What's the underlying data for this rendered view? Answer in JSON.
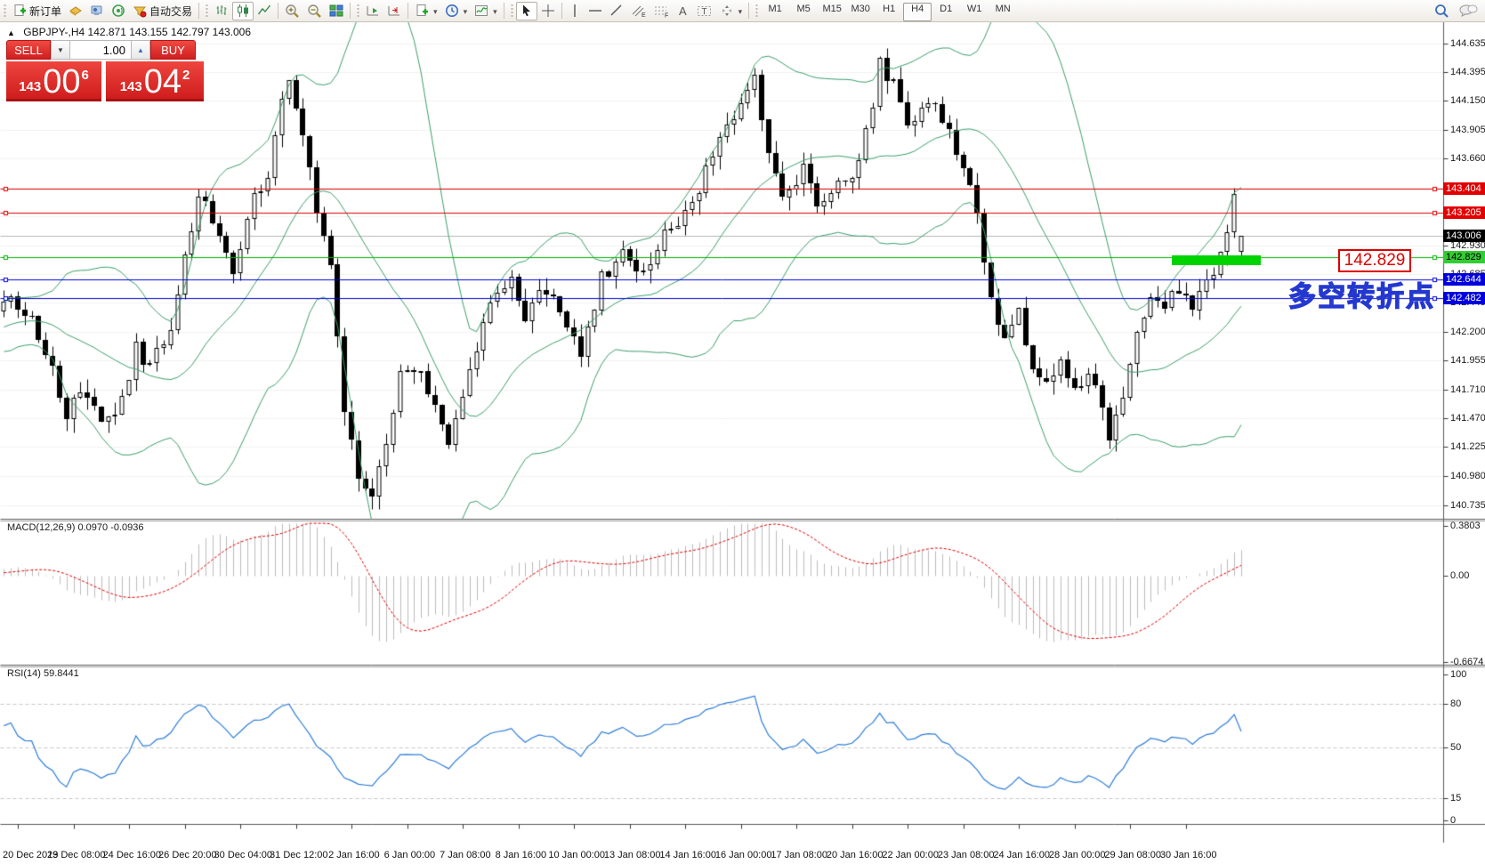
{
  "toolbar": {
    "new_order_label": "新订单",
    "autotrading_label": "自动交易",
    "channel_letter": "E",
    "fibo_letter": "F",
    "text_letter": "A",
    "label_letter": "T",
    "timeframes": [
      "M1",
      "M5",
      "M15",
      "M30",
      "H1",
      "H4",
      "D1",
      "W1",
      "MN"
    ],
    "active_timeframe": "H4"
  },
  "chart": {
    "title": "GBPJPY-,H4  142.871 143.155 142.797 143.006",
    "symbol": "GBPJPY-",
    "period": "H4"
  },
  "trade_panel": {
    "sell_label": "SELL",
    "buy_label": "BUY",
    "volume": "1.00",
    "sell_price": {
      "prefix": "143",
      "big": "00",
      "sup": "6"
    },
    "buy_price": {
      "prefix": "143",
      "big": "04",
      "sup": "2"
    }
  },
  "price_axis": {
    "ticks": [
      "144.635",
      "144.395",
      "144.150",
      "143.905",
      "143.660",
      "143.415",
      "143.175",
      "142.930",
      "142.685",
      "142.445",
      "142.200",
      "141.955",
      "141.710",
      "141.470",
      "141.225",
      "140.980",
      "140.735"
    ],
    "badges": [
      {
        "label": "143.404",
        "price": 143.404,
        "bg": "#e20000",
        "fg": "#ffffff"
      },
      {
        "label": "143.205",
        "price": 143.205,
        "bg": "#e20000",
        "fg": "#ffffff"
      },
      {
        "label": "143.006",
        "price": 143.006,
        "bg": "#000000",
        "fg": "#ffffff"
      },
      {
        "label": "142.829",
        "price": 142.829,
        "bg": "#33cc33",
        "fg": "#000000"
      },
      {
        "label": "142.644",
        "price": 142.644,
        "bg": "#0000dd",
        "fg": "#ffffff"
      },
      {
        "label": "142.482",
        "price": 142.482,
        "bg": "#0000dd",
        "fg": "#ffffff"
      }
    ]
  },
  "macd": {
    "label": "MACD(12,26,9) 0.0970 -0.0936",
    "axis": [
      {
        "label": "0.3803",
        "value": 0.3803
      },
      {
        "label": "0.00",
        "value": 0
      },
      {
        "label": "-0.6674",
        "value": -0.6674
      }
    ]
  },
  "rsi": {
    "label": "RSI(14) 59.8441",
    "axis": [
      {
        "label": "100",
        "value": 100
      },
      {
        "label": "80",
        "value": 80
      },
      {
        "label": "50",
        "value": 50
      },
      {
        "label": "15",
        "value": 15
      },
      {
        "label": "0",
        "value": 0
      }
    ],
    "levels": [
      80,
      50,
      15
    ]
  },
  "time_axis": [
    "20 Dec 2019",
    "23 Dec 08:00",
    "24 Dec 16:00",
    "26 Dec 20:00",
    "30 Dec 04:00",
    "31 Dec 12:00",
    "2 Jan 16:00",
    "6 Jan 00:00",
    "7 Jan 08:00",
    "8 Jan 16:00",
    "10 Jan 00:00",
    "13 Jan 08:00",
    "14 Jan 16:00",
    "16 Jan 00:00",
    "17 Jan 08:00",
    "20 Jan 16:00",
    "22 Jan 00:00",
    "23 Jan 08:00",
    "24 Jan 16:00",
    "28 Jan 00:00",
    "29 Jan 08:00",
    "30 Jan 16:00"
  ],
  "annotations": {
    "price_label": "142.829",
    "turning_point": "多空转折点"
  },
  "chart_data": {
    "type": "candlestick",
    "symbol": "GBPJPY-",
    "timeframe": "H4",
    "visible_range": {
      "from": "20 Dec 2019",
      "to": "31 Jan 2020"
    },
    "price_range": {
      "min": 140.62,
      "max": 144.82
    },
    "last_bar": {
      "open": 142.871,
      "high": 143.155,
      "low": 142.797,
      "close": 143.006
    },
    "indicators": [
      "Bollinger Bands (20,2)",
      "MACD(12,26,9)",
      "RSI(14)"
    ],
    "levels": [
      {
        "price": 143.404,
        "color": "#e20000",
        "style": "solid"
      },
      {
        "price": 143.205,
        "color": "#e20000",
        "style": "solid"
      },
      {
        "price": 143.006,
        "color": "#aaaaaa",
        "style": "current-bid"
      },
      {
        "price": 142.829,
        "color": "#00b400",
        "style": "solid",
        "note": "turning point with thick highlight segment"
      },
      {
        "price": 142.644,
        "color": "#0000e0",
        "style": "solid"
      },
      {
        "price": 142.482,
        "color": "#0000e0",
        "style": "solid"
      }
    ],
    "macd_range": {
      "max": 0.3803,
      "min": -0.6674,
      "current": [
        0.097,
        -0.0936
      ]
    },
    "rsi_current": 59.8441,
    "close_anchor_points": [
      [
        -45,
        142.1
      ],
      [
        -35,
        142.5
      ],
      [
        -25,
        141.95
      ],
      [
        -15,
        142.3
      ],
      [
        -8,
        142.15
      ],
      [
        -2,
        142.45
      ],
      [
        0,
        142.42
      ],
      [
        2,
        142.28
      ],
      [
        5,
        141.9
      ],
      [
        7,
        141.48
      ],
      [
        9,
        141.7
      ],
      [
        12,
        141.45
      ],
      [
        15,
        141.6
      ],
      [
        17,
        142.05
      ],
      [
        19,
        141.88
      ],
      [
        22,
        142.25
      ],
      [
        26,
        143.35
      ],
      [
        28,
        143.12
      ],
      [
        31,
        142.7
      ],
      [
        34,
        143.3
      ],
      [
        36,
        143.55
      ],
      [
        38,
        144.18
      ],
      [
        39,
        144.3
      ],
      [
        41,
        143.85
      ],
      [
        43,
        143.25
      ],
      [
        45,
        142.7
      ],
      [
        47,
        141.55
      ],
      [
        49,
        141.0
      ],
      [
        51,
        140.85
      ],
      [
        53,
        141.2
      ],
      [
        55,
        141.8
      ],
      [
        58,
        141.85
      ],
      [
        60,
        141.55
      ],
      [
        62,
        141.2
      ],
      [
        64,
        141.6
      ],
      [
        66,
        142.1
      ],
      [
        68,
        142.45
      ],
      [
        71,
        142.6
      ],
      [
        73,
        142.35
      ],
      [
        76,
        142.55
      ],
      [
        79,
        142.3
      ],
      [
        81,
        142.05
      ],
      [
        84,
        142.65
      ],
      [
        87,
        142.85
      ],
      [
        90,
        142.7
      ],
      [
        93,
        143.0
      ],
      [
        96,
        143.2
      ],
      [
        99,
        143.55
      ],
      [
        102,
        143.9
      ],
      [
        104,
        144.15
      ],
      [
        106,
        144.35
      ],
      [
        108,
        143.7
      ],
      [
        110,
        143.35
      ],
      [
        113,
        143.55
      ],
      [
        115,
        143.3
      ],
      [
        118,
        143.45
      ],
      [
        121,
        143.6
      ],
      [
        123,
        144.1
      ],
      [
        124,
        144.45
      ],
      [
        126,
        144.3
      ],
      [
        128,
        143.95
      ],
      [
        130,
        144.05
      ],
      [
        132,
        144.15
      ],
      [
        134,
        143.9
      ],
      [
        136,
        143.55
      ],
      [
        138,
        143.25
      ],
      [
        140,
        142.45
      ],
      [
        142,
        142.2
      ],
      [
        144,
        142.4
      ],
      [
        146,
        141.9
      ],
      [
        148,
        141.75
      ],
      [
        150,
        142.0
      ],
      [
        152,
        141.7
      ],
      [
        154,
        141.9
      ],
      [
        156,
        141.5
      ],
      [
        157,
        141.35
      ],
      [
        159,
        141.6
      ],
      [
        161,
        142.2
      ],
      [
        163,
        142.45
      ],
      [
        165,
        142.4
      ],
      [
        167,
        142.55
      ],
      [
        169,
        142.45
      ],
      [
        171,
        142.6
      ],
      [
        173,
        142.85
      ],
      [
        175,
        143.3
      ],
      [
        176,
        143.006
      ]
    ]
  }
}
